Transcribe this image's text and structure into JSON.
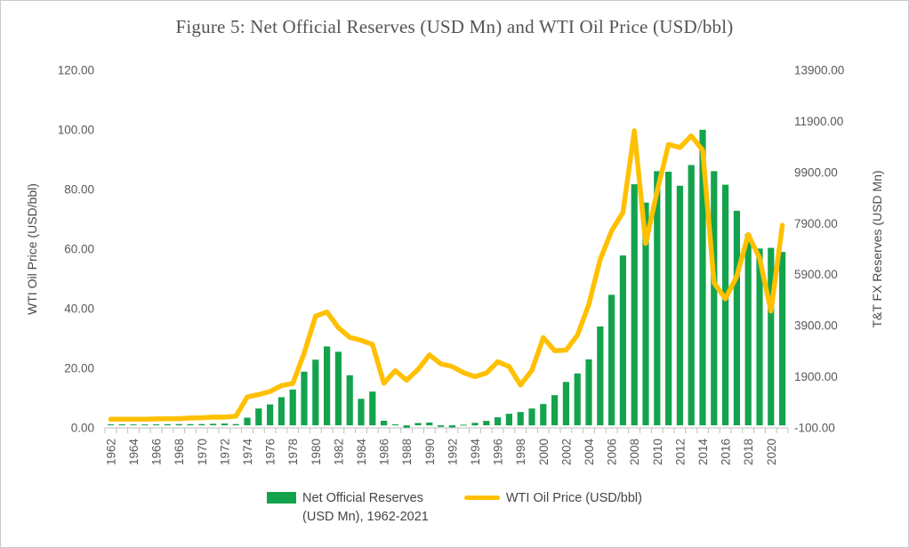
{
  "figure": {
    "title": "Figure 5: Net Official Reserves (USD Mn) and WTI Oil Price (USD/bbl)"
  },
  "left_axis": {
    "title": "WTI Oil Price (USD/bbl)",
    "tick_labels": [
      "0.00",
      "20.00",
      "40.00",
      "60.00",
      "80.00",
      "100.00",
      "120.00"
    ]
  },
  "right_axis": {
    "title": "T&T FX Reserves (USD Mn)",
    "tick_labels": [
      "-100.00",
      "1900.00",
      "3900.00",
      "5900.00",
      "7900.00",
      "9900.00",
      "11900.00",
      "13900.00"
    ]
  },
  "x_axis": {
    "tick_step": 2,
    "first_label": "1962",
    "last_label": "2020"
  },
  "legend": {
    "bars_label_line1": "Net Official Reserves",
    "bars_label_line2": "(USD Mn), 1962-2021",
    "line_label": "WTI Oil Price (USD/bbl)"
  },
  "colors": {
    "bars": "#14A34D",
    "line": "#FFC000",
    "axis": "#BFBFBF",
    "text": "#595959"
  },
  "chart_data": {
    "type": "combo-bar-line",
    "title": "Figure 5: Net Official Reserves (USD Mn) and WTI Oil Price (USD/bbl)",
    "categories": [
      1962,
      1963,
      1964,
      1965,
      1966,
      1967,
      1968,
      1969,
      1970,
      1971,
      1972,
      1973,
      1974,
      1975,
      1976,
      1977,
      1978,
      1979,
      1980,
      1981,
      1982,
      1983,
      1984,
      1985,
      1986,
      1987,
      1988,
      1989,
      1990,
      1991,
      1992,
      1993,
      1994,
      1995,
      1996,
      1997,
      1998,
      1999,
      2000,
      2001,
      2002,
      2003,
      2004,
      2005,
      2006,
      2007,
      2008,
      2009,
      2010,
      2011,
      2012,
      2013,
      2014,
      2015,
      2016,
      2017,
      2018,
      2019,
      2020,
      2021
    ],
    "series": [
      {
        "name": "Net Official Reserves (USD Mn), 1962-2021",
        "type": "bar",
        "axis": "right",
        "color": "#14A34D",
        "values": [
          40,
          40,
          35,
          35,
          40,
          45,
          50,
          45,
          50,
          60,
          70,
          50,
          300,
          660,
          820,
          1100,
          1400,
          2100,
          2570,
          3090,
          2880,
          1960,
          1040,
          1320,
          180,
          40,
          -90,
          90,
          110,
          -60,
          -80,
          25,
          100,
          175,
          315,
          455,
          525,
          660,
          835,
          1180,
          1700,
          2030,
          2580,
          3870,
          5110,
          6650,
          9440,
          8720,
          9950,
          9930,
          9380,
          10190,
          11570,
          9950,
          9420,
          8400,
          7480,
          6920,
          6950,
          6790
        ]
      },
      {
        "name": "WTI Oil Price (USD/bbl)",
        "type": "line",
        "axis": "left",
        "color": "#FFC000",
        "values": [
          2.9,
          2.9,
          2.9,
          2.9,
          3.0,
          3.1,
          3.1,
          3.3,
          3.4,
          3.6,
          3.6,
          3.9,
          10.4,
          11.2,
          12.2,
          14.2,
          14.9,
          25.1,
          37.5,
          38.9,
          33.6,
          30.4,
          29.4,
          28.0,
          15.0,
          19.2,
          16.0,
          19.6,
          24.5,
          21.5,
          20.6,
          18.5,
          17.2,
          18.4,
          22.2,
          20.6,
          14.4,
          19.3,
          30.3,
          25.9,
          26.1,
          31.1,
          41.4,
          56.5,
          66.1,
          72.3,
          99.7,
          61.9,
          79.4,
          95.1,
          94.1,
          98.0,
          93.2,
          48.7,
          43.3,
          50.9,
          64.9,
          57.0,
          39.2,
          68.0
        ]
      }
    ],
    "left_ylabel": "WTI Oil Price (USD/bbl)",
    "right_ylabel": "T&T FX Reserves (USD Mn)",
    "left_ylim": [
      0,
      120
    ],
    "right_ylim": [
      -100,
      13900
    ],
    "left_tick_step": 20,
    "right_tick_step": 2000,
    "grid": false,
    "legend_position": "bottom",
    "x_tick_label_rotation": -90
  }
}
